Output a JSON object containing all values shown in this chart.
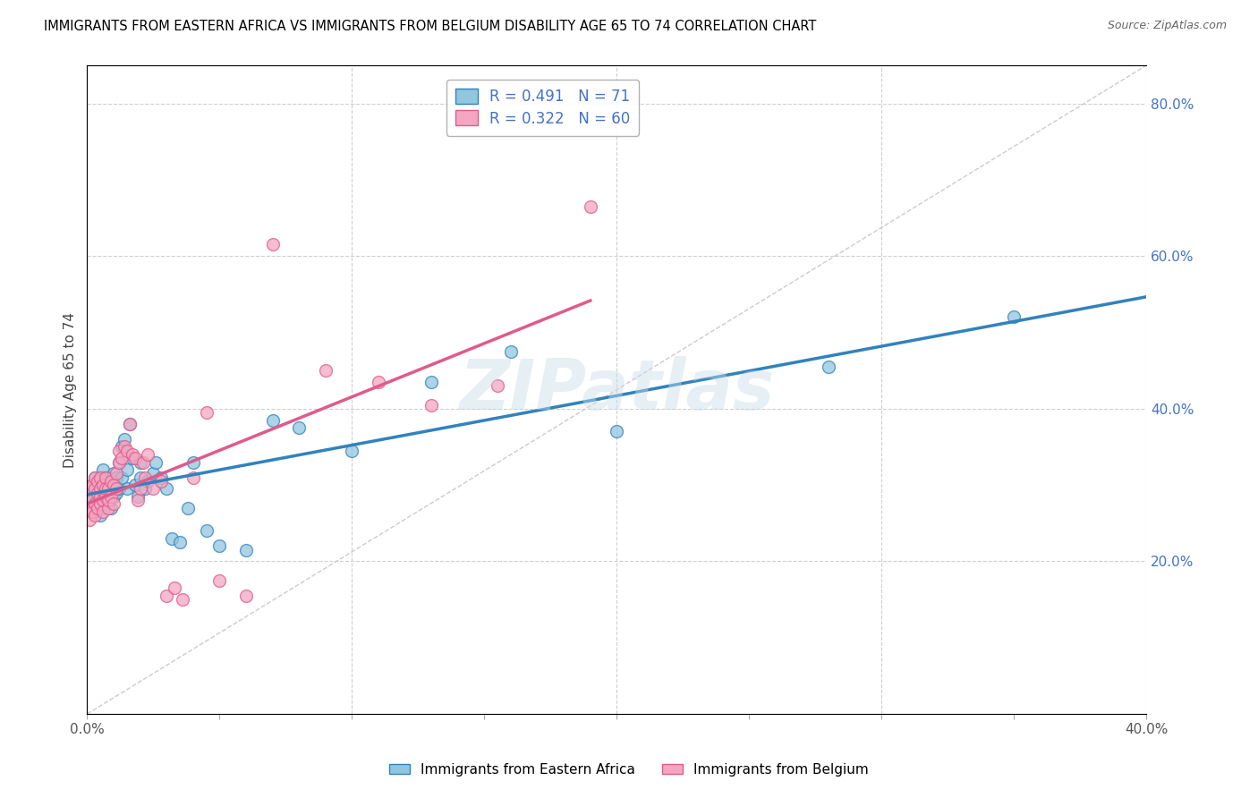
{
  "title": "IMMIGRANTS FROM EASTERN AFRICA VS IMMIGRANTS FROM BELGIUM DISABILITY AGE 65 TO 74 CORRELATION CHART",
  "source": "Source: ZipAtlas.com",
  "ylabel": "Disability Age 65 to 74",
  "legend_label_1": "Immigrants from Eastern Africa",
  "legend_label_2": "Immigrants from Belgium",
  "R1": 0.491,
  "N1": 71,
  "R2": 0.322,
  "N2": 60,
  "color1": "#92c5de",
  "color2": "#f4a6c0",
  "line_color1": "#3182bd",
  "line_color2": "#e05a8a",
  "diagonal_color": "#d0c0d0",
  "xmin": 0.0,
  "xmax": 0.4,
  "ymin": 0.0,
  "ymax": 0.85,
  "x_tick_positions": [
    0.0,
    0.05,
    0.1,
    0.15,
    0.2,
    0.25,
    0.3,
    0.35,
    0.4
  ],
  "x_tick_labels": [
    "0.0%",
    "",
    "",
    "",
    "",
    "",
    "",
    "",
    "40.0%"
  ],
  "y_ticks_right": [
    0.2,
    0.4,
    0.6,
    0.8
  ],
  "y_tick_labels_right": [
    "20.0%",
    "40.0%",
    "60.0%",
    "80.0%"
  ],
  "watermark_text": "ZIPatlas",
  "scatter1_x": [
    0.001,
    0.001,
    0.002,
    0.002,
    0.002,
    0.003,
    0.003,
    0.003,
    0.003,
    0.004,
    0.004,
    0.004,
    0.004,
    0.005,
    0.005,
    0.005,
    0.005,
    0.005,
    0.006,
    0.006,
    0.006,
    0.006,
    0.007,
    0.007,
    0.007,
    0.008,
    0.008,
    0.008,
    0.008,
    0.009,
    0.009,
    0.009,
    0.01,
    0.01,
    0.01,
    0.011,
    0.011,
    0.012,
    0.012,
    0.013,
    0.013,
    0.014,
    0.015,
    0.015,
    0.016,
    0.017,
    0.018,
    0.019,
    0.02,
    0.02,
    0.022,
    0.023,
    0.025,
    0.026,
    0.028,
    0.03,
    0.032,
    0.035,
    0.038,
    0.04,
    0.045,
    0.05,
    0.06,
    0.07,
    0.08,
    0.1,
    0.13,
    0.16,
    0.2,
    0.28,
    0.35
  ],
  "scatter1_y": [
    0.28,
    0.295,
    0.3,
    0.285,
    0.27,
    0.31,
    0.29,
    0.275,
    0.265,
    0.3,
    0.285,
    0.27,
    0.295,
    0.31,
    0.285,
    0.295,
    0.27,
    0.26,
    0.305,
    0.285,
    0.32,
    0.275,
    0.295,
    0.28,
    0.31,
    0.295,
    0.275,
    0.285,
    0.31,
    0.3,
    0.285,
    0.27,
    0.3,
    0.315,
    0.285,
    0.31,
    0.29,
    0.33,
    0.295,
    0.35,
    0.31,
    0.36,
    0.295,
    0.32,
    0.38,
    0.335,
    0.3,
    0.285,
    0.33,
    0.31,
    0.295,
    0.305,
    0.315,
    0.33,
    0.31,
    0.295,
    0.23,
    0.225,
    0.27,
    0.33,
    0.24,
    0.22,
    0.215,
    0.385,
    0.375,
    0.345,
    0.435,
    0.475,
    0.37,
    0.455,
    0.52
  ],
  "scatter2_x": [
    0.001,
    0.001,
    0.001,
    0.002,
    0.002,
    0.002,
    0.003,
    0.003,
    0.003,
    0.003,
    0.004,
    0.004,
    0.004,
    0.005,
    0.005,
    0.005,
    0.005,
    0.006,
    0.006,
    0.006,
    0.007,
    0.007,
    0.007,
    0.008,
    0.008,
    0.008,
    0.009,
    0.009,
    0.01,
    0.01,
    0.011,
    0.011,
    0.012,
    0.012,
    0.013,
    0.014,
    0.015,
    0.016,
    0.017,
    0.018,
    0.019,
    0.02,
    0.021,
    0.022,
    0.023,
    0.025,
    0.028,
    0.03,
    0.033,
    0.036,
    0.04,
    0.045,
    0.05,
    0.06,
    0.07,
    0.09,
    0.11,
    0.13,
    0.155,
    0.19
  ],
  "scatter2_y": [
    0.27,
    0.295,
    0.255,
    0.28,
    0.3,
    0.265,
    0.31,
    0.295,
    0.275,
    0.26,
    0.29,
    0.305,
    0.27,
    0.31,
    0.285,
    0.275,
    0.295,
    0.3,
    0.28,
    0.265,
    0.285,
    0.31,
    0.295,
    0.27,
    0.295,
    0.28,
    0.305,
    0.285,
    0.275,
    0.3,
    0.295,
    0.315,
    0.33,
    0.345,
    0.335,
    0.35,
    0.345,
    0.38,
    0.34,
    0.335,
    0.28,
    0.295,
    0.33,
    0.31,
    0.34,
    0.295,
    0.305,
    0.155,
    0.165,
    0.15,
    0.31,
    0.395,
    0.175,
    0.155,
    0.615,
    0.45,
    0.435,
    0.405,
    0.43,
    0.665
  ]
}
